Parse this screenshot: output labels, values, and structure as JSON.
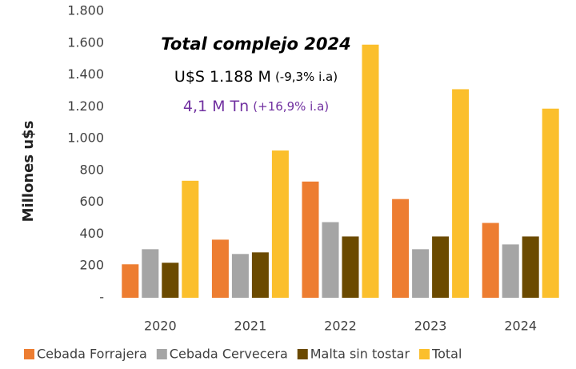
{
  "chart_data": {
    "type": "bar",
    "y_axis_label": "Millones u$s",
    "annotations": [
      "Total complejo 2024",
      "U$S 1.188 M",
      "(-9,3% i.a)",
      "4,1 M Tn",
      "(+16,9% i.a)"
    ],
    "categories": [
      "2020",
      "2021",
      "2022",
      "2023",
      "2024"
    ],
    "series": [
      {
        "name": "Cebada Forrajera",
        "color": "#ed7d31",
        "values": [
          210,
          365,
          730,
          620,
          470
        ]
      },
      {
        "name": "Cebada Cervecera",
        "color": "#a5a5a5",
        "values": [
          305,
          275,
          475,
          305,
          335
        ]
      },
      {
        "name": "Malta sin tostar",
        "color": "#6b4a00",
        "values": [
          220,
          285,
          385,
          385,
          385
        ]
      },
      {
        "name": "Total",
        "color": "#fbbf2c",
        "values": [
          735,
          925,
          1590,
          1310,
          1188
        ]
      }
    ],
    "ylim": [
      0,
      1800
    ],
    "yticks": [
      {
        "value": 0,
        "label": "-"
      },
      200,
      400,
      600,
      800,
      {
        "value": 1000,
        "label": "1.000"
      },
      {
        "value": 1200,
        "label": "1.200"
      },
      {
        "value": 1400,
        "label": "1.400"
      },
      {
        "value": 1600,
        "label": "1.600"
      },
      {
        "value": 1800,
        "label": "1.800"
      }
    ],
    "grid": false
  }
}
